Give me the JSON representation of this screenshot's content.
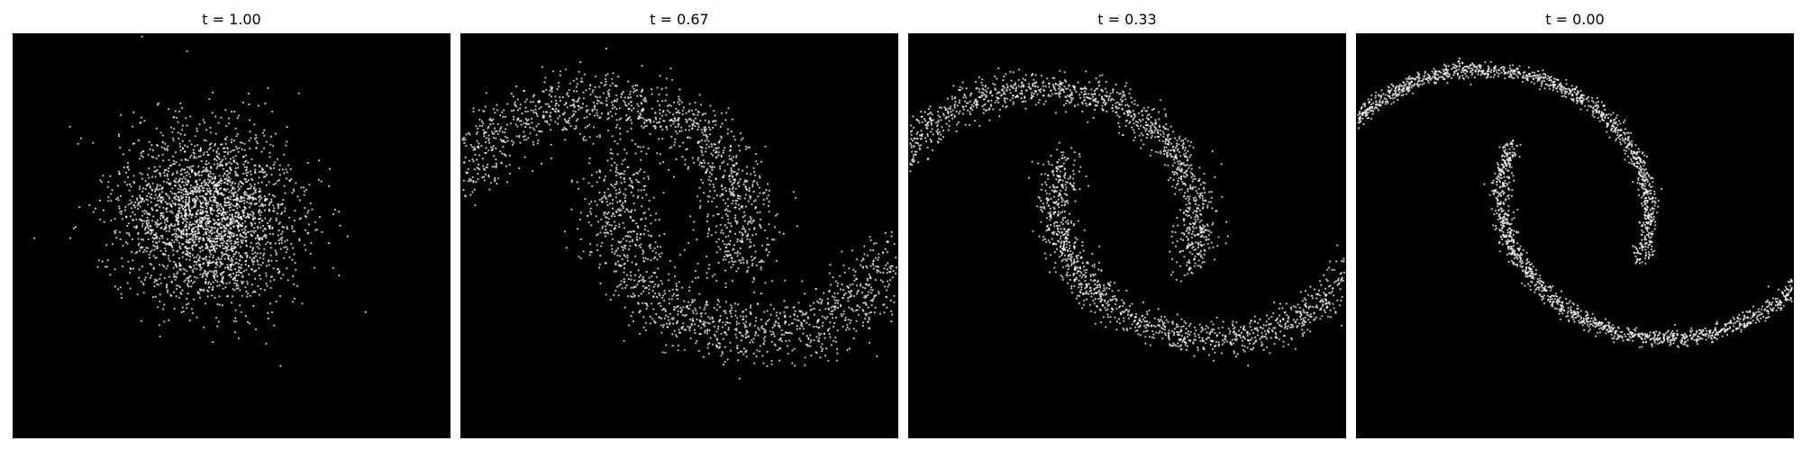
{
  "figure": {
    "background": "#ffffff",
    "panel_background": "#000000",
    "point_color": "#ffffff"
  },
  "chart_data": [
    {
      "type": "scatter",
      "title": "t = 1.00",
      "xlabel": "",
      "ylabel": "",
      "axes_visible": false,
      "grid": false,
      "distribution": "isotropic gaussian blob",
      "xlim": [
        -4,
        4
      ],
      "ylim": [
        -4,
        4
      ],
      "approx_points": 5000,
      "center": [
        0,
        0
      ],
      "spread": 1.0
    },
    {
      "type": "scatter",
      "title": "t = 0.67",
      "xlabel": "",
      "ylabel": "",
      "axes_visible": false,
      "grid": false,
      "distribution": "two interleaving moons (diffuse)",
      "xlim": [
        -4,
        4
      ],
      "ylim": [
        -4,
        4
      ],
      "approx_points": 5000,
      "noise": 0.7
    },
    {
      "type": "scatter",
      "title": "t = 0.33",
      "xlabel": "",
      "ylabel": "",
      "axes_visible": false,
      "grid": false,
      "distribution": "two interleaving moons",
      "xlim": [
        -4,
        4
      ],
      "ylim": [
        -4,
        4
      ],
      "approx_points": 5000,
      "noise": 0.35
    },
    {
      "type": "scatter",
      "title": "t = 0.00",
      "xlabel": "",
      "ylabel": "",
      "axes_visible": false,
      "grid": false,
      "distribution": "two interleaving moons (sharp)",
      "xlim": [
        -4,
        4
      ],
      "ylim": [
        -4,
        4
      ],
      "approx_points": 5000,
      "noise": 0.15
    }
  ]
}
